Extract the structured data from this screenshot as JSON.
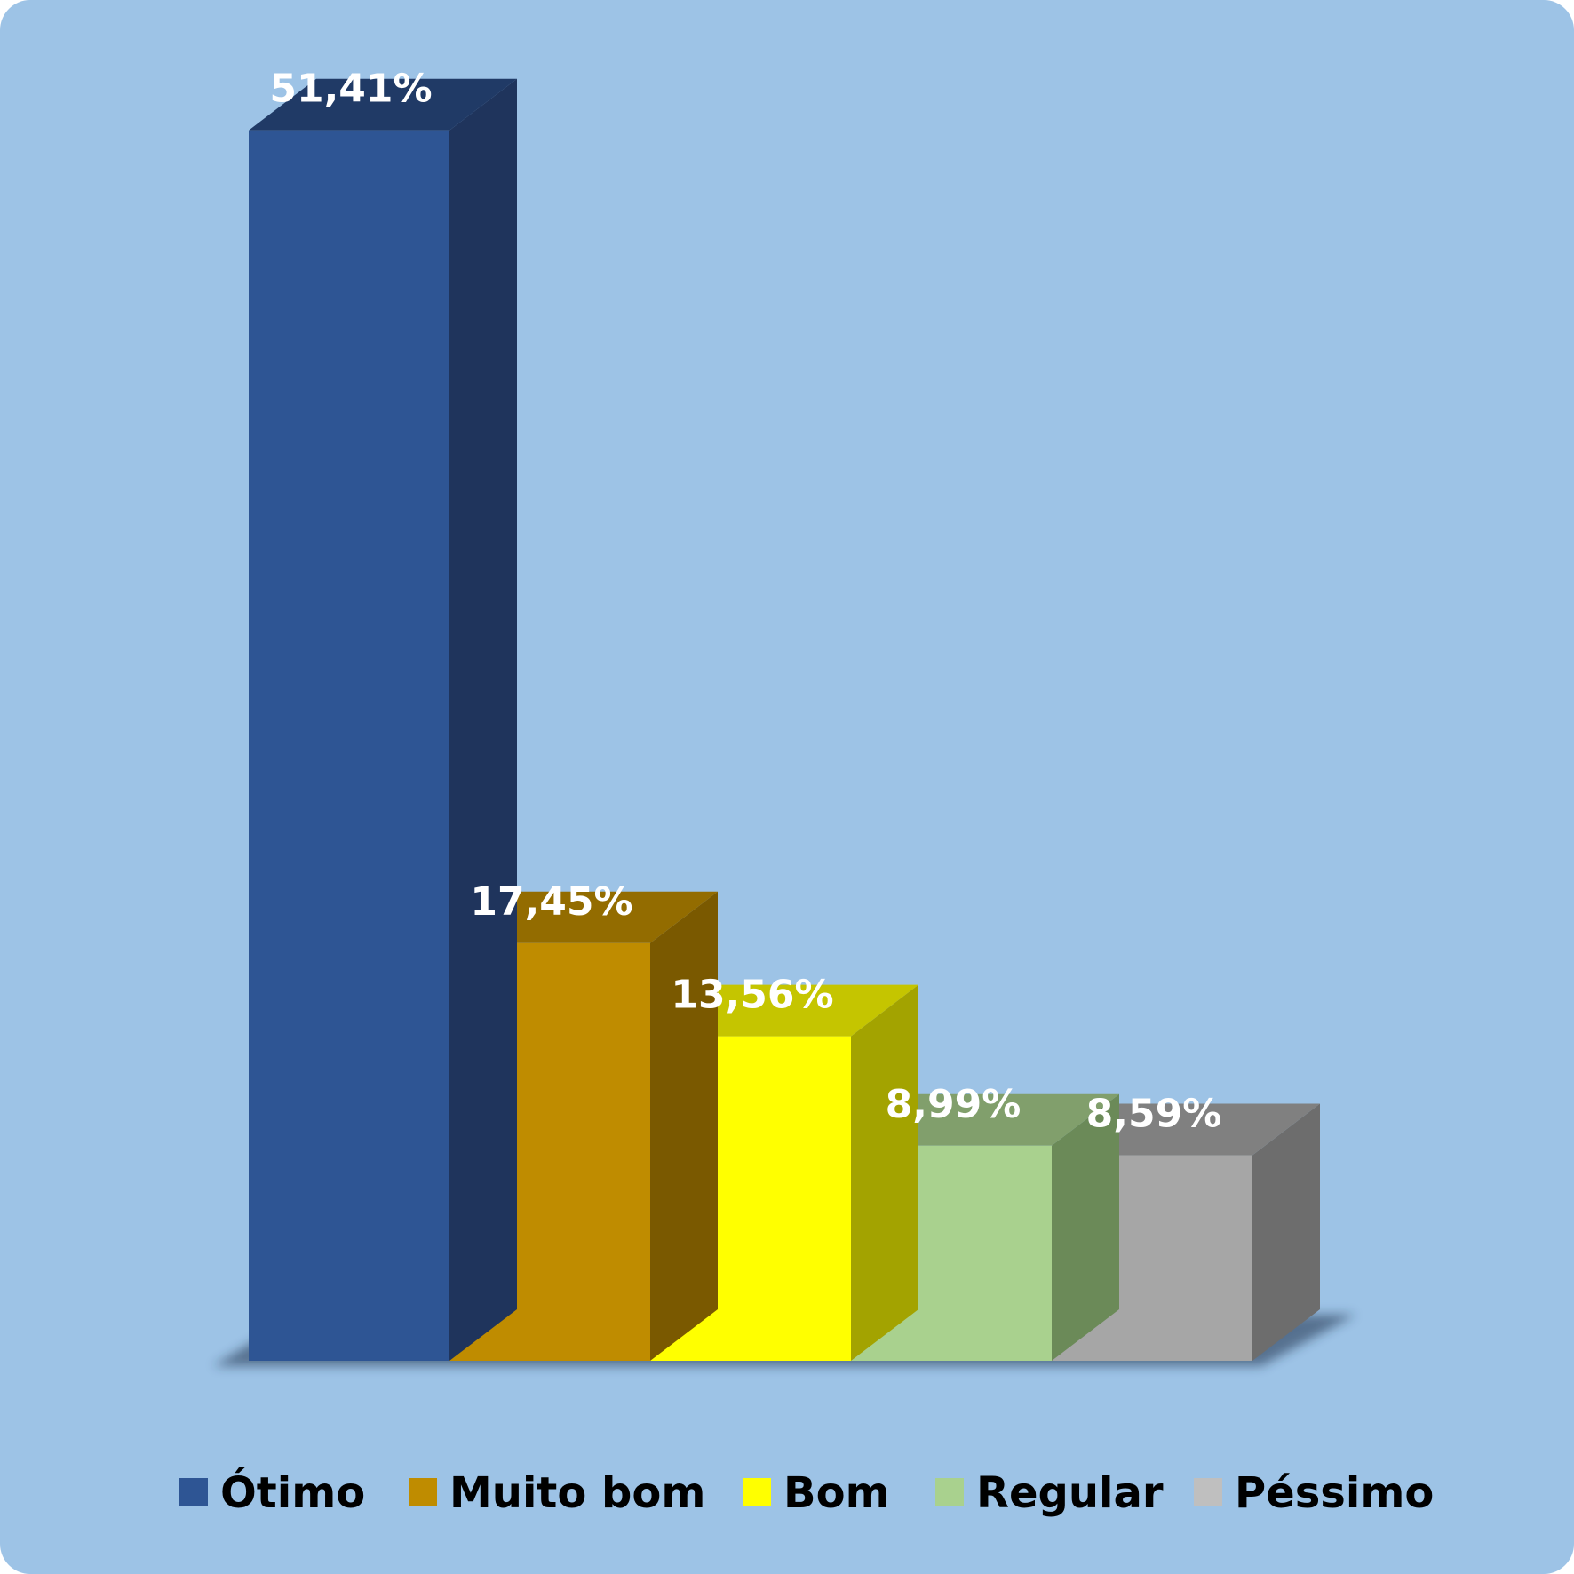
{
  "chart_data": {
    "type": "bar",
    "style": "3d-stepped",
    "categories": [
      "Ótimo",
      "Muito bom",
      "Bom",
      "Regular",
      "Péssimo"
    ],
    "values": [
      51.41,
      17.45,
      13.56,
      8.99,
      8.59
    ],
    "labels": [
      "51,41%",
      "17,45%",
      "13,56%",
      "8,99%",
      "8,59%"
    ],
    "unit": "%",
    "ylim": [
      0,
      55
    ],
    "grid": false,
    "legend_position": "bottom",
    "colors": {
      "front": [
        "#2e5594",
        "#bf8c00",
        "#ffff00",
        "#a9d18e",
        "#a6a6a6"
      ],
      "top": [
        "#203a66",
        "#936c00",
        "#c5c500",
        "#819f6c",
        "#808080"
      ],
      "side": [
        "#1f345c",
        "#7a5900",
        "#a3a300",
        "#6b8a58",
        "#6d6d6d"
      ],
      "legend": [
        "#2e5594",
        "#bf8c00",
        "#ffff00",
        "#a9d18e",
        "#bfbfbf"
      ]
    },
    "background": "#9dc3e6"
  }
}
